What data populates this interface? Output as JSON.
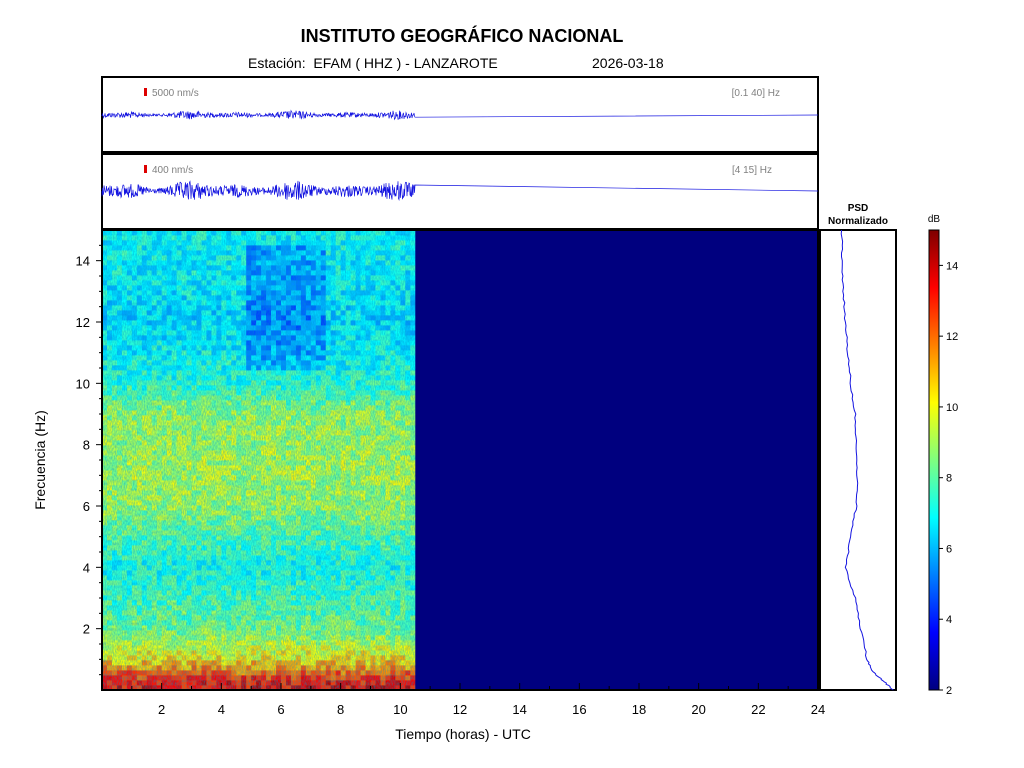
{
  "header": {
    "title": "INSTITUTO GEOGRÁFICO NACIONAL",
    "subtitle": "Estación:  EFAM ( HHZ ) - LANZAROTE",
    "date": "2026-03-18"
  },
  "colors": {
    "trace": "#1414e0",
    "spectrogram_empty": "#00007f",
    "scale_bar": "#dd0000",
    "label_grey": "#7f7f7f"
  },
  "chart_data": [
    {
      "type": "line",
      "name": "waveform-broadband",
      "scale_label": "5000 nm/s",
      "band_label": "[0.1 40] Hz",
      "x_range": [
        0,
        24
      ],
      "data_end_hour": 10.5,
      "relative_amplitude": 0.12
    },
    {
      "type": "line",
      "name": "waveform-filtered",
      "scale_label": "400 nm/s",
      "band_label": "[4 15] Hz",
      "x_range": [
        0,
        24
      ],
      "data_end_hour": 10.5,
      "relative_amplitude": 0.28
    },
    {
      "type": "heatmap",
      "name": "spectrogram",
      "xlabel": "Tiempo (horas) - UTC",
      "ylabel": "Frecuencia  (Hz)",
      "xlim": [
        0,
        24
      ],
      "ylim": [
        0,
        15
      ],
      "x_ticks": [
        2,
        4,
        6,
        8,
        10,
        12,
        14,
        16,
        18,
        20,
        22,
        24
      ],
      "y_ticks": [
        2,
        4,
        6,
        8,
        10,
        12,
        14
      ],
      "data_end_hour": 10.5,
      "frequency_profile_db": [
        {
          "f": 0.2,
          "db": 13.5
        },
        {
          "f": 0.5,
          "db": 12.5
        },
        {
          "f": 1.0,
          "db": 10.5
        },
        {
          "f": 2.0,
          "db": 8.5
        },
        {
          "f": 3.0,
          "db": 7.8
        },
        {
          "f": 4.0,
          "db": 7.2
        },
        {
          "f": 5.0,
          "db": 8.0
        },
        {
          "f": 6.0,
          "db": 9.0
        },
        {
          "f": 7.0,
          "db": 9.3
        },
        {
          "f": 8.0,
          "db": 9.2
        },
        {
          "f": 9.0,
          "db": 9.0
        },
        {
          "f": 10.0,
          "db": 7.5
        },
        {
          "f": 11.0,
          "db": 7.0
        },
        {
          "f": 12.0,
          "db": 6.5
        },
        {
          "f": 13.0,
          "db": 6.8
        },
        {
          "f": 14.0,
          "db": 7.0
        },
        {
          "f": 15.0,
          "db": 7.0
        }
      ],
      "colorbar": {
        "label": "dB",
        "range": [
          2,
          15
        ],
        "ticks": [
          2,
          4,
          6,
          8,
          10,
          12,
          14
        ]
      }
    },
    {
      "type": "line",
      "name": "psd",
      "title_lines": [
        "PSD",
        "Normalizado"
      ],
      "ylim": [
        0,
        15
      ],
      "points": [
        {
          "f": 0.0,
          "v": 0.98
        },
        {
          "f": 0.3,
          "v": 0.8
        },
        {
          "f": 0.6,
          "v": 0.6
        },
        {
          "f": 1.0,
          "v": 0.5
        },
        {
          "f": 2.0,
          "v": 0.38
        },
        {
          "f": 3.0,
          "v": 0.28
        },
        {
          "f": 4.0,
          "v": 0.1
        },
        {
          "f": 5.0,
          "v": 0.2
        },
        {
          "f": 6.0,
          "v": 0.3
        },
        {
          "f": 7.0,
          "v": 0.32
        },
        {
          "f": 8.0,
          "v": 0.3
        },
        {
          "f": 9.0,
          "v": 0.28
        },
        {
          "f": 10.0,
          "v": 0.2
        },
        {
          "f": 11.0,
          "v": 0.14
        },
        {
          "f": 12.0,
          "v": 0.1
        },
        {
          "f": 13.0,
          "v": 0.06
        },
        {
          "f": 14.0,
          "v": 0.04
        },
        {
          "f": 15.0,
          "v": 0.03
        }
      ]
    }
  ]
}
